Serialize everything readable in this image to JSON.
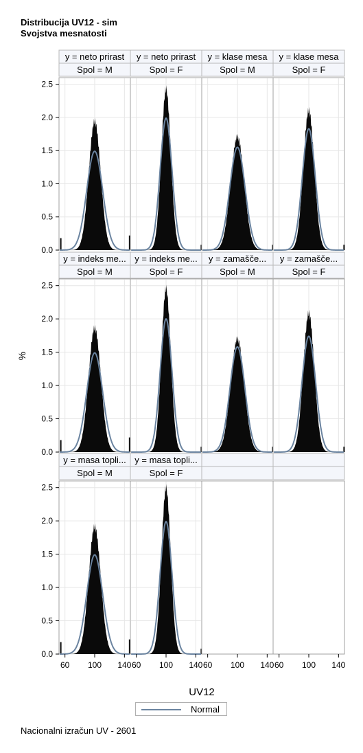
{
  "title": "Distribucija UV12 - sim",
  "subtitle": "Svojstva mesnatosti",
  "footer": "Nacionalni izračun UV - 2601",
  "chart_data": {
    "type": "histogram-panel",
    "xlabel": "UV12",
    "ylabel": "%",
    "xlim": [
      52,
      148
    ],
    "ylim": [
      0,
      2.6
    ],
    "x_ticks": [
      60,
      100,
      140
    ],
    "y_ticks": [
      "0.0",
      "0.5",
      "1.0",
      "1.5",
      "2.0",
      "2.5"
    ],
    "legend": {
      "placement": "bottom",
      "entries": [
        "Normal"
      ]
    },
    "colors": {
      "bars": "#0a0a0a",
      "normal_curve": "#6b84a0",
      "grid": "#e6e6e6",
      "header_bg": "#f4f6fb"
    },
    "panels": [
      {
        "y": "y = neto prirast",
        "sex": "Spol = M",
        "hist_peak": 2.0,
        "normal_peak": 1.49,
        "mean": 100,
        "tail_spikes": true
      },
      {
        "y": "y = neto prirast",
        "sex": "Spol = F",
        "hist_peak": 2.5,
        "normal_peak": 1.99,
        "mean": 100,
        "tail_spikes": false
      },
      {
        "y": "y = klase mesa",
        "sex": "Spol = M",
        "hist_peak": 1.76,
        "normal_peak": 1.55,
        "mean": 100,
        "tail_spikes": false
      },
      {
        "y": "y = klase mesa",
        "sex": "Spol = F",
        "hist_peak": 2.17,
        "normal_peak": 1.83,
        "mean": 100,
        "tail_spikes": false
      },
      {
        "y": "y = indeks me...",
        "sex": "Spol = M",
        "hist_peak": 1.92,
        "normal_peak": 1.49,
        "mean": 100,
        "tail_spikes": true
      },
      {
        "y": "y = indeks me...",
        "sex": "Spol = F",
        "hist_peak": 2.53,
        "normal_peak": 2.0,
        "mean": 100,
        "tail_spikes": false
      },
      {
        "y": "y = zamaščе...",
        "sex": "Spol = M",
        "hist_peak": 1.75,
        "normal_peak": 1.58,
        "mean": 100,
        "tail_spikes": false
      },
      {
        "y": "y = zamaščе...",
        "sex": "Spol = F",
        "hist_peak": 2.15,
        "normal_peak": 1.74,
        "mean": 100,
        "tail_spikes": false
      },
      {
        "y": "y = masa topli...",
        "sex": "Spol = M",
        "hist_peak": 1.97,
        "normal_peak": 1.49,
        "mean": 100,
        "tail_spikes": true
      },
      {
        "y": "y = masa topli...",
        "sex": "Spol = F",
        "hist_peak": 2.57,
        "normal_peak": 1.99,
        "mean": 100,
        "tail_spikes": false
      }
    ]
  }
}
